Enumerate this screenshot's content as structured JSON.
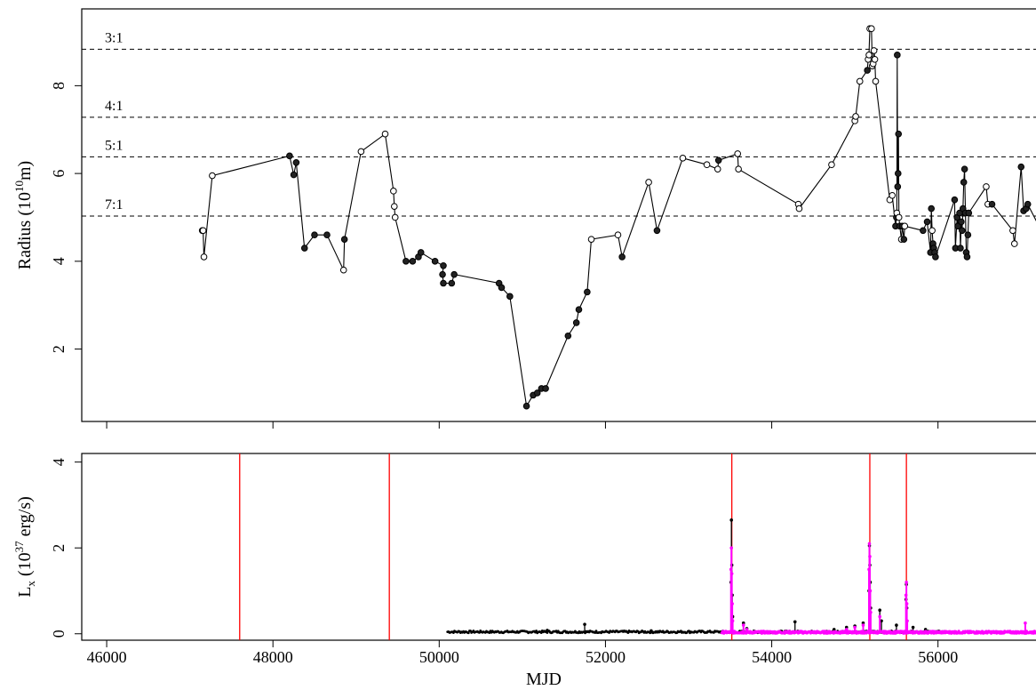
{
  "chart_data": [
    {
      "type": "line",
      "panel": "top",
      "xlabel": "",
      "ylabel": {
        "main": "Radius (10",
        "exp": "10",
        "unit": "m)"
      },
      "xlim": [
        45700,
        57350
      ],
      "ylim": [
        0.35,
        9.75
      ],
      "xticks": [
        46000,
        48000,
        50000,
        52000,
        54000,
        56000
      ],
      "yticks": [
        2,
        4,
        6,
        8
      ],
      "ytick_labels": [
        "2",
        "4",
        "6",
        "8"
      ],
      "resonances": [
        {
          "label": "3:1",
          "y": 8.83
        },
        {
          "label": "4:1",
          "y": 7.28
        },
        {
          "label": "5:1",
          "y": 6.38
        },
        {
          "label": "7:1",
          "y": 5.03
        }
      ],
      "series": [
        {
          "points": [
            [
              47150,
              4.7,
              "f"
            ],
            [
              47160,
              4.7,
              "o"
            ],
            [
              47170,
              4.1,
              "o"
            ],
            [
              47270,
              5.95,
              "o"
            ],
            [
              48200,
              6.4,
              "f"
            ],
            [
              48250,
              5.97,
              "f"
            ],
            [
              48280,
              6.25,
              "f"
            ],
            [
              48380,
              4.3,
              "f"
            ],
            [
              48500,
              4.6,
              "f"
            ],
            [
              48650,
              4.6,
              "f"
            ],
            [
              48850,
              3.8,
              "o"
            ],
            [
              48860,
              4.5,
              "f"
            ],
            [
              49060,
              6.5,
              "o"
            ],
            [
              49350,
              6.9,
              "o"
            ],
            [
              49450,
              5.6,
              "o"
            ],
            [
              49460,
              5.25,
              "o"
            ],
            [
              49470,
              5.0,
              "o"
            ],
            [
              49600,
              4.0,
              "f"
            ],
            [
              49680,
              4.0,
              "f"
            ],
            [
              49750,
              4.1,
              "f"
            ],
            [
              49780,
              4.2,
              "f"
            ],
            [
              49950,
              4.0,
              "f"
            ],
            [
              50050,
              3.9,
              "f"
            ],
            [
              50040,
              3.7,
              "f"
            ],
            [
              50050,
              3.5,
              "f"
            ],
            [
              50150,
              3.5,
              "f"
            ],
            [
              50180,
              3.7,
              "f"
            ],
            [
              50720,
              3.5,
              "f"
            ],
            [
              50750,
              3.4,
              "f"
            ],
            [
              50850,
              3.2,
              "f"
            ],
            [
              51050,
              0.7,
              "f"
            ],
            [
              51130,
              0.95,
              "f"
            ],
            [
              51180,
              1.0,
              "f"
            ],
            [
              51230,
              1.1,
              "f"
            ],
            [
              51280,
              1.1,
              "f"
            ],
            [
              51550,
              2.3,
              "f"
            ],
            [
              51650,
              2.6,
              "f"
            ],
            [
              51680,
              2.9,
              "f"
            ],
            [
              51780,
              3.3,
              "f"
            ],
            [
              51830,
              4.5,
              "o"
            ],
            [
              52150,
              4.6,
              "o"
            ],
            [
              52200,
              4.1,
              "f"
            ],
            [
              52520,
              5.8,
              "o"
            ],
            [
              52620,
              4.7,
              "f"
            ],
            [
              52930,
              6.35,
              "o"
            ],
            [
              53220,
              6.2,
              "o"
            ],
            [
              53350,
              6.1,
              "o"
            ],
            [
              53360,
              6.3,
              "f"
            ],
            [
              53590,
              6.45,
              "o"
            ],
            [
              53600,
              6.1,
              "o"
            ],
            [
              54320,
              5.3,
              "o"
            ],
            [
              54330,
              5.2,
              "o"
            ],
            [
              54720,
              6.2,
              "o"
            ],
            [
              55000,
              7.2,
              "o"
            ],
            [
              55010,
              7.3,
              "o"
            ],
            [
              55060,
              8.1,
              "o"
            ],
            [
              55150,
              8.35,
              "f"
            ],
            [
              55160,
              8.6,
              "o"
            ],
            [
              55170,
              8.7,
              "o"
            ],
            [
              55180,
              9.3,
              "o"
            ],
            [
              55200,
              9.3,
              "o"
            ],
            [
              55210,
              8.45,
              "o"
            ],
            [
              55220,
              8.5,
              "o"
            ],
            [
              55230,
              8.8,
              "o"
            ],
            [
              55240,
              8.6,
              "o"
            ],
            [
              55250,
              8.1,
              "o"
            ],
            [
              55420,
              5.4,
              "o"
            ],
            [
              55450,
              5.5,
              "o"
            ],
            [
              55490,
              4.8,
              "f"
            ],
            [
              55500,
              5.0,
              "f"
            ],
            [
              55505,
              5.1,
              "o"
            ],
            [
              55510,
              8.7,
              "f"
            ],
            [
              55515,
              5.7,
              "f"
            ],
            [
              55520,
              6.0,
              "f"
            ],
            [
              55525,
              6.9,
              "f"
            ],
            [
              55530,
              5.0,
              "o"
            ],
            [
              55540,
              4.8,
              "f"
            ],
            [
              55560,
              4.5,
              "o"
            ],
            [
              55570,
              4.8,
              "f"
            ],
            [
              55590,
              4.5,
              "f"
            ],
            [
              55600,
              4.8,
              "o"
            ],
            [
              55820,
              4.7,
              "f"
            ],
            [
              55870,
              4.9,
              "f"
            ],
            [
              55910,
              4.2,
              "f"
            ],
            [
              55920,
              5.2,
              "f"
            ],
            [
              55930,
              4.7,
              "o"
            ],
            [
              55940,
              4.4,
              "f"
            ],
            [
              55950,
              4.3,
              "f"
            ],
            [
              55960,
              4.2,
              "f"
            ],
            [
              55970,
              4.1,
              "f"
            ],
            [
              56200,
              5.4,
              "f"
            ],
            [
              56210,
              4.3,
              "f"
            ],
            [
              56230,
              5.0,
              "f"
            ],
            [
              56240,
              4.8,
              "f"
            ],
            [
              56260,
              5.1,
              "f"
            ],
            [
              56270,
              4.3,
              "f"
            ],
            [
              56280,
              4.9,
              "f"
            ],
            [
              56290,
              4.7,
              "f"
            ],
            [
              56300,
              5.2,
              "f"
            ],
            [
              56310,
              5.8,
              "f"
            ],
            [
              56320,
              6.1,
              "f"
            ],
            [
              56330,
              5.1,
              "f"
            ],
            [
              56340,
              4.2,
              "f"
            ],
            [
              56350,
              4.1,
              "f"
            ],
            [
              56360,
              4.6,
              "f"
            ],
            [
              56370,
              5.1,
              "f"
            ],
            [
              56580,
              5.7,
              "o"
            ],
            [
              56600,
              5.3,
              "o"
            ],
            [
              56650,
              5.3,
              "f"
            ],
            [
              56900,
              4.7,
              "o"
            ],
            [
              56920,
              4.4,
              "o"
            ],
            [
              57000,
              6.15,
              "f"
            ],
            [
              57030,
              5.15,
              "f"
            ],
            [
              57060,
              5.2,
              "f"
            ],
            [
              57080,
              5.3,
              "f"
            ],
            [
              57350,
              4.3,
              "o"
            ]
          ]
        }
      ]
    },
    {
      "type": "scatter",
      "panel": "bottom",
      "xlabel": "MJD",
      "ylabel": {
        "main": "L",
        "sub": "x",
        "mid": " (10",
        "exp": "37",
        "unit": " erg/s)"
      },
      "xlim": [
        45700,
        57350
      ],
      "ylim": [
        -0.15,
        4.2
      ],
      "xticks": [
        46000,
        48000,
        50000,
        52000,
        54000,
        56000
      ],
      "xtick_labels": [
        "46000",
        "48000",
        "50000",
        "52000",
        "54000",
        "56000"
      ],
      "yticks": [
        0,
        2,
        4
      ],
      "ytick_labels": [
        "0",
        "2",
        "4"
      ],
      "vlines": [
        47600,
        49400,
        53520,
        55180,
        55620
      ],
      "colors": {
        "series_a": "#000000",
        "series_b": "#ff00ff",
        "vlines": "#ff0000"
      },
      "series": [
        {
          "color": "#000000",
          "x_range": [
            50100,
            56100
          ],
          "baseline": 0.02,
          "spikes": [
            [
              51750,
              0.22
            ],
            [
              51300,
              0.08
            ],
            [
              52550,
              0.07
            ],
            [
              53510,
              1.2
            ],
            [
              53515,
              2.65
            ],
            [
              53520,
              1.6
            ],
            [
              53525,
              0.9
            ],
            [
              53530,
              0.4
            ],
            [
              53660,
              0.25
            ],
            [
              53700,
              0.12
            ],
            [
              54280,
              0.28
            ],
            [
              54750,
              0.1
            ],
            [
              54900,
              0.15
            ],
            [
              55000,
              0.18
            ],
            [
              55100,
              0.25
            ],
            [
              55170,
              1.0
            ],
            [
              55175,
              2.05
            ],
            [
              55180,
              1.6
            ],
            [
              55185,
              1.2
            ],
            [
              55190,
              0.6
            ],
            [
              55300,
              0.55
            ],
            [
              55320,
              0.3
            ],
            [
              55500,
              0.2
            ],
            [
              55615,
              0.8
            ],
            [
              55620,
              1.15
            ],
            [
              55625,
              0.6
            ],
            [
              55700,
              0.15
            ],
            [
              55850,
              0.1
            ]
          ]
        },
        {
          "color": "#ff00ff",
          "x_range": [
            53400,
            57350
          ],
          "baseline": 0.01,
          "spikes": [
            [
              53510,
              1.5
            ],
            [
              53515,
              2.0
            ],
            [
              53520,
              1.4
            ],
            [
              53525,
              0.7
            ],
            [
              53530,
              0.3
            ],
            [
              53660,
              0.2
            ],
            [
              53700,
              0.1
            ],
            [
              54650,
              0.05
            ],
            [
              54900,
              0.1
            ],
            [
              55000,
              0.15
            ],
            [
              55100,
              0.2
            ],
            [
              55170,
              1.5
            ],
            [
              55175,
              2.1
            ],
            [
              55180,
              1.8
            ],
            [
              55185,
              1.0
            ],
            [
              55190,
              0.5
            ],
            [
              55300,
              0.4
            ],
            [
              55615,
              0.9
            ],
            [
              55620,
              1.2
            ],
            [
              55625,
              0.7
            ],
            [
              55630,
              0.3
            ],
            [
              56200,
              0.05
            ],
            [
              57050,
              0.25
            ]
          ]
        }
      ]
    }
  ]
}
